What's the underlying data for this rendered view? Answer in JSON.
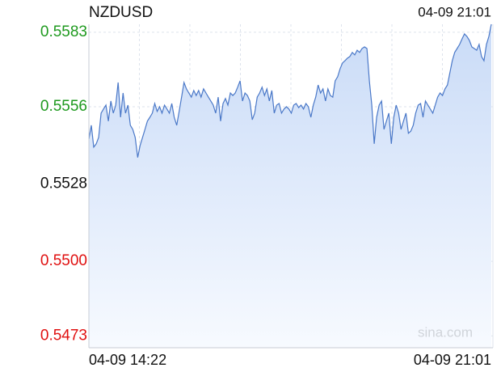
{
  "chart_data": {
    "type": "area",
    "title": "NZDUSD",
    "timestamp": "04-09 21:01",
    "watermark": "sina.com",
    "x_labels": [
      "04-09 14:22",
      "04-09 21:01"
    ],
    "color": "#4a78c8",
    "up_color": "#1f9a1f",
    "down_color": "#e01010",
    "reference": 0.5528,
    "ylim": [
      0.54687,
      0.55859
    ],
    "yticks": [
      {
        "value": 0.5583,
        "label": "0.5583"
      },
      {
        "value": 0.5556,
        "label": "0.5556"
      },
      {
        "value": 0.5528,
        "label": "0.5528"
      },
      {
        "value": 0.55,
        "label": "0.5500"
      },
      {
        "value": 0.5473,
        "label": "0.5473"
      }
    ],
    "grid": true,
    "values": [
      0.55443,
      0.55493,
      0.55414,
      0.55426,
      0.55449,
      0.55537,
      0.55552,
      0.55566,
      0.55508,
      0.55581,
      0.55537,
      0.55566,
      0.55648,
      0.55522,
      0.5561,
      0.55537,
      0.55566,
      0.55493,
      0.55478,
      0.55449,
      0.55376,
      0.5542,
      0.55449,
      0.55478,
      0.55508,
      0.55522,
      0.55537,
      0.55572,
      0.55543,
      0.5556,
      0.55537,
      0.55566,
      0.55552,
      0.55537,
      0.55572,
      0.55522,
      0.55493,
      0.55543,
      0.55595,
      0.55648,
      0.55625,
      0.5561,
      0.55595,
      0.55619,
      0.55601,
      0.55619,
      0.55595,
      0.55625,
      0.5561,
      0.55595,
      0.55581,
      0.55566,
      0.55537,
      0.55595,
      0.55508,
      0.55572,
      0.5559,
      0.55566,
      0.5561,
      0.55601,
      0.5561,
      0.55631,
      0.55654,
      0.55581,
      0.5561,
      0.55601,
      0.55581,
      0.55513,
      0.55537,
      0.55595,
      0.5561,
      0.55631,
      0.55601,
      0.55625,
      0.55581,
      0.55619,
      0.55537,
      0.55566,
      0.55572,
      0.55537,
      0.55552,
      0.5556,
      0.55552,
      0.55537,
      0.55566,
      0.55572,
      0.55557,
      0.55566,
      0.55552,
      0.55572,
      0.5556,
      0.55522,
      0.55566,
      0.55595,
      0.55639,
      0.5561,
      0.55625,
      0.55581,
      0.55625,
      0.55601,
      0.55595,
      0.55654,
      0.55669,
      0.55698,
      0.55719,
      0.55727,
      0.55736,
      0.55742,
      0.55757,
      0.55748,
      0.55765,
      0.55757,
      0.55771,
      0.55777,
      0.55771,
      0.55654,
      0.55566,
      0.55426,
      0.55522,
      0.55566,
      0.55581,
      0.55478,
      0.55508,
      0.55537,
      0.55426,
      0.55522,
      0.55566,
      0.55537,
      0.55478,
      0.55508,
      0.55537,
      0.55464,
      0.55472,
      0.55493,
      0.55537,
      0.55566,
      0.55572,
      0.55522,
      0.55581,
      0.55566,
      0.55552,
      0.55537,
      0.55566,
      0.55595,
      0.5561,
      0.55601,
      0.55625,
      0.55639,
      0.55683,
      0.55727,
      0.55757,
      0.55771,
      0.55786,
      0.55806,
      0.55824,
      0.55815,
      0.55801,
      0.55777,
      0.55771,
      0.55765,
      0.55786,
      0.55742,
      0.55727,
      0.55786,
      0.55815,
      0.55859
    ]
  }
}
